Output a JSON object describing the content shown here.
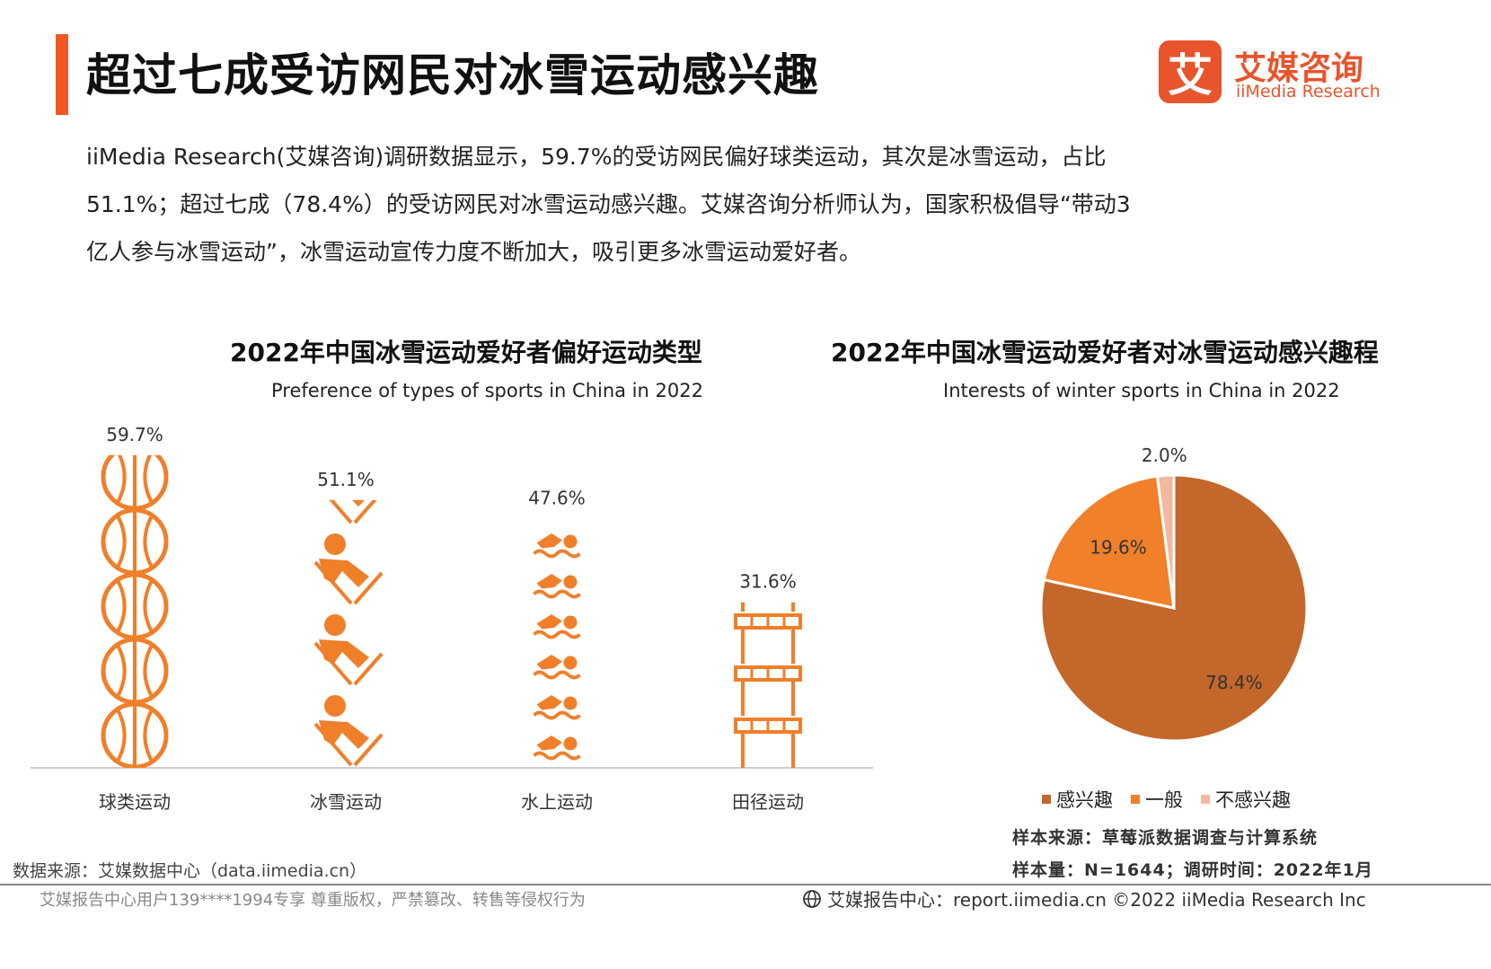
{
  "header": {
    "title": "超过七成受访网民对冰雪运动感兴趣",
    "accent_color": "#f05a22"
  },
  "logo": {
    "mark": "艾",
    "cn": "艾媒咨询",
    "en": "iiMedia Research",
    "color": "#e8542b"
  },
  "intro": {
    "line1": "iiMedia Research(艾媒咨询)调研数据显示，59.7%的受访网民偏好球类运动，其次是冰雪运动，占比",
    "line2": "51.1%；超过七成（78.4%）的受访网民对冰雪运动感兴趣。艾媒咨询分析师认为，国家积极倡导“带动3",
    "line3": "亿人参与冰雪运动”，冰雪运动宣传力度不断加大，吸引更多冰雪运动爱好者。"
  },
  "chart_data": [
    {
      "type": "bar",
      "title": "2022年中国冰雪运动爱好者偏好运动类型",
      "subtitle": "Preference of types of sports in China in 2022",
      "categories": [
        "球类运动",
        "冰雪运动",
        "水上运动",
        "田径运动"
      ],
      "values": [
        59.7,
        51.1,
        47.6,
        31.6
      ],
      "value_labels": [
        "59.7%",
        "51.1%",
        "47.6%",
        "31.6%"
      ],
      "icons": [
        "basketball-icon",
        "skier-icon",
        "swimmer-icon",
        "hurdle-icon"
      ],
      "color": "#f07f2a",
      "ylim": [
        0,
        60
      ]
    },
    {
      "type": "pie",
      "title": "2022年中国冰雪运动爱好者对冰雪运动感兴趣程",
      "subtitle": "Interests of winter sports in China in 2022",
      "labels": [
        "感兴趣",
        "一般",
        "不感兴趣"
      ],
      "values": [
        78.4,
        19.6,
        2.0
      ],
      "value_labels": [
        "78.4%",
        "19.6%",
        "2.0%"
      ],
      "colors": [
        "#c4672b",
        "#f0802a",
        "#f3b8a0"
      ]
    }
  ],
  "notes": {
    "sample_source": "样本来源：草莓派数据调查与计算系统",
    "sample_size": "样本量：N=1644；调研时间：2022年1月",
    "data_source": "数据来源：艾媒数据中心（data.iimedia.cn）"
  },
  "footer": {
    "left": "艾媒报告中心用户139****1994专享 尊重版权，严禁篡改、转售等侵权行为",
    "right_icon": "globe-icon",
    "right": "艾媒报告中心：report.iimedia.cn   ©2022  iiMedia Research  Inc"
  }
}
